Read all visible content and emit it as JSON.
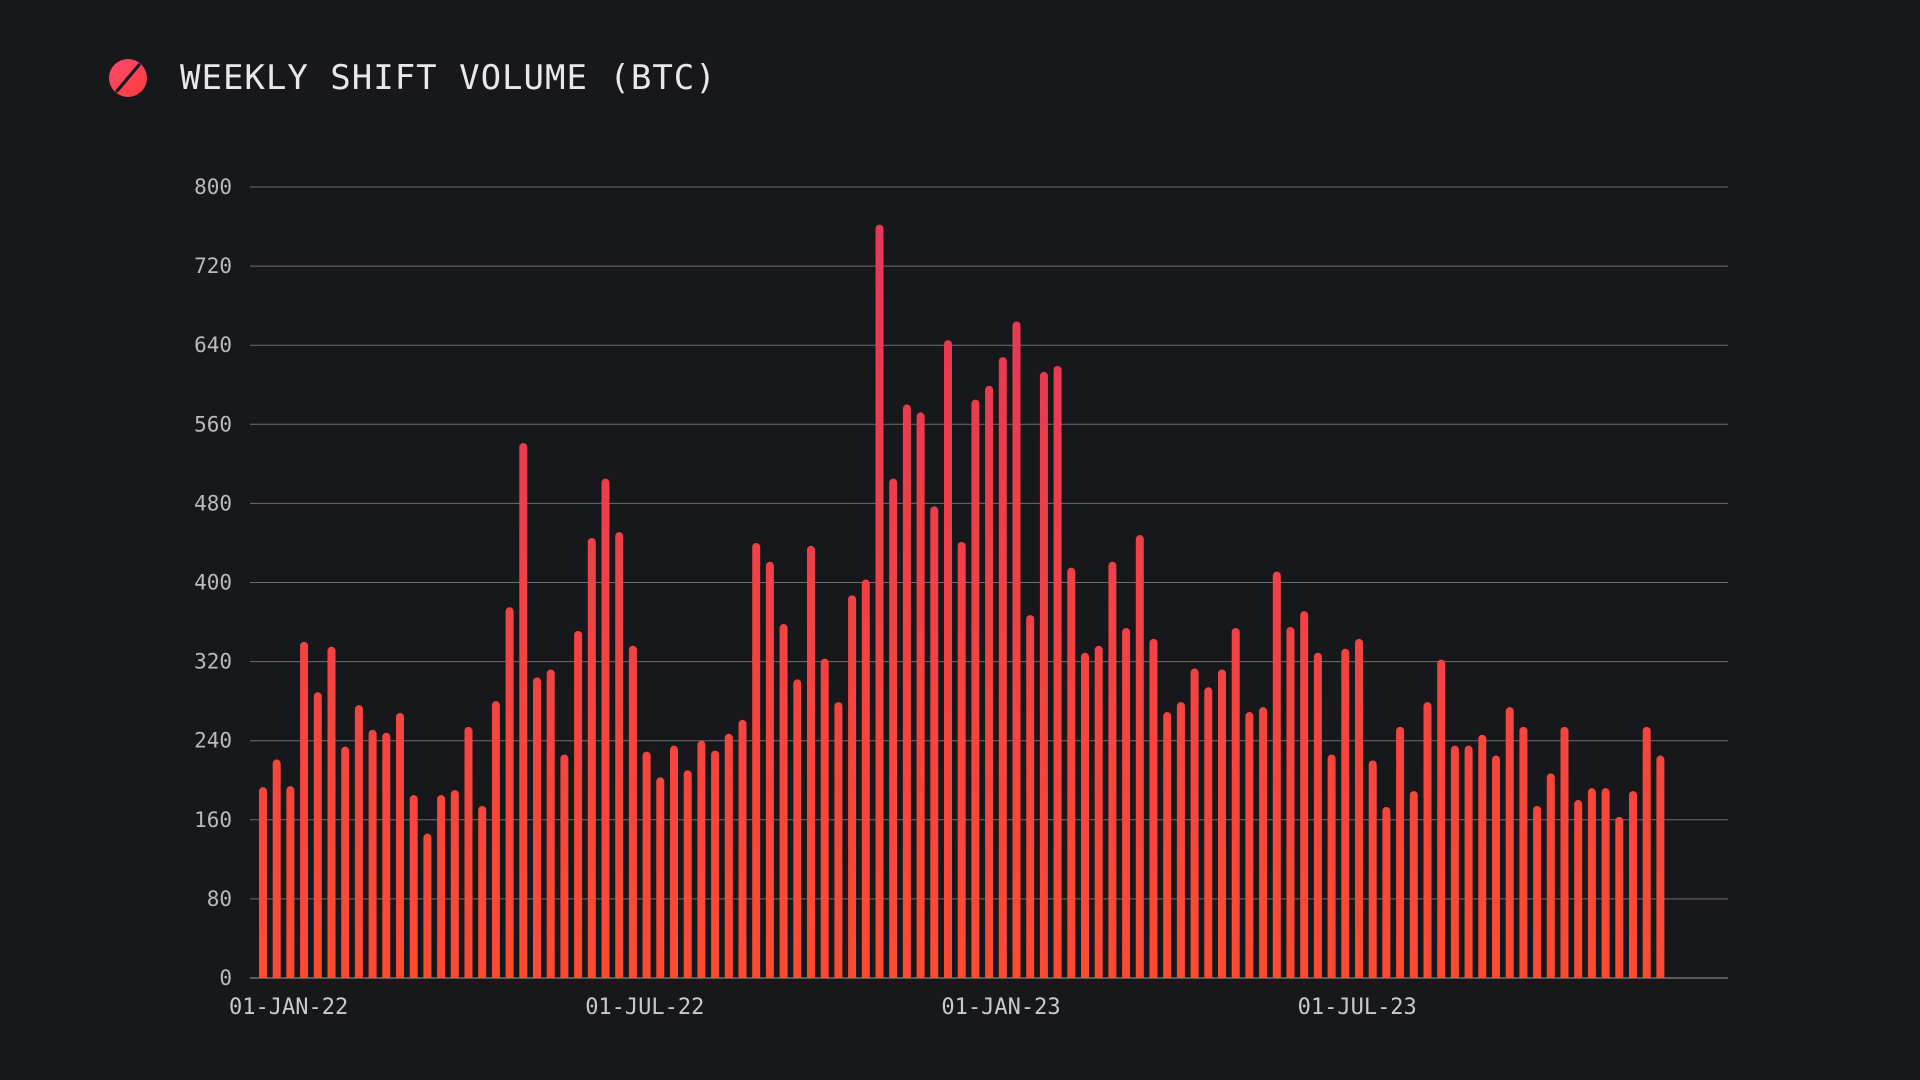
{
  "header": {
    "title": "WEEKLY SHIFT VOLUME (BTC)",
    "logo_icon": "slashed-circle-logo-icon"
  },
  "colors": {
    "background": "#17181c",
    "bar_top": "#e3365b",
    "bar_bottom": "#ff4a32",
    "grid": "#6b6c72",
    "text": "#e8e8ea"
  },
  "chart_data": {
    "type": "bar",
    "title": "WEEKLY SHIFT VOLUME (BTC)",
    "xlabel": "",
    "ylabel": "",
    "ylim": [
      0,
      800
    ],
    "yticks": [
      0,
      80,
      160,
      240,
      320,
      400,
      480,
      560,
      640,
      720,
      800
    ],
    "grid": true,
    "x_tick_labels": [
      {
        "label": "01-JAN-22",
        "index": 0
      },
      {
        "label": "01-JUL-22",
        "index": 26
      },
      {
        "label": "01-JAN-23",
        "index": 52
      },
      {
        "label": "01-JUL-23",
        "index": 78
      }
    ],
    "series": [
      {
        "values": [
          193,
          221,
          194,
          340,
          289,
          335,
          234,
          276,
          251,
          248,
          268,
          185,
          146,
          185,
          190,
          254,
          174,
          280,
          375,
          541,
          304,
          312,
          226,
          351,
          445,
          505,
          451,
          336,
          229,
          203,
          235,
          210,
          240,
          230,
          247,
          261,
          440,
          421,
          358,
          302,
          437,
          323,
          279,
          387,
          403,
          762,
          505,
          580,
          572,
          477,
          645,
          441,
          585,
          599,
          628,
          664,
          367,
          613,
          619,
          415,
          329,
          336,
          421,
          354,
          448,
          343,
          269,
          279,
          313,
          294,
          312,
          354,
          269,
          274,
          411,
          355,
          371,
          329,
          226,
          333,
          343,
          220,
          173,
          254,
          189,
          279,
          322,
          235,
          235,
          246,
          225,
          274,
          254,
          174,
          207,
          254,
          180,
          192,
          192,
          163,
          189,
          254,
          225
        ]
      }
    ]
  }
}
